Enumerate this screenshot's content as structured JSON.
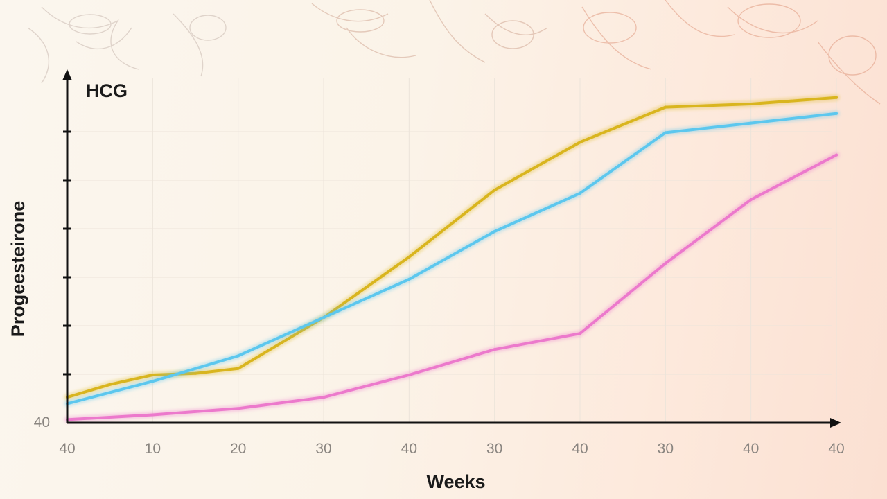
{
  "colors": {
    "axis": "#111111",
    "grid": "#ece4da",
    "tick_label": "#8a8580",
    "decor": "#d9a892"
  },
  "chart_data": {
    "type": "line",
    "title": "",
    "xlabel": "Weeks",
    "ylabel": "Progeesteirone",
    "y_axis_title": "HCG",
    "x_tick_labels": [
      "40",
      "10",
      "20",
      "30",
      "40",
      "30",
      "40",
      "30",
      "40",
      "40"
    ],
    "y_tick_labels": [
      "40"
    ],
    "y_ticks_unlabeled": 6,
    "xlim": [
      0,
      9
    ],
    "ylim": [
      0,
      100
    ],
    "grid": true,
    "legend": "none",
    "series": [
      {
        "color": "#d9b51e",
        "x": [
          0,
          0.5,
          1,
          1.5,
          2,
          3,
          4,
          5,
          6,
          7,
          8,
          9
        ],
        "values": [
          8,
          12,
          15,
          15.5,
          17,
          33,
          52,
          73,
          88,
          99,
          100,
          102
        ]
      },
      {
        "color": "#5cc7ee",
        "x": [
          0,
          1,
          2,
          3,
          4,
          5,
          6,
          7,
          8,
          9
        ],
        "values": [
          6,
          13,
          21,
          33,
          45,
          60,
          72,
          91,
          94,
          97
        ]
      },
      {
        "color": "#ec79cc",
        "x": [
          0,
          1,
          2,
          3,
          4,
          5,
          6,
          7,
          8,
          9
        ],
        "values": [
          1,
          2.5,
          4.5,
          8,
          15,
          23,
          28,
          50,
          70,
          84
        ]
      }
    ]
  }
}
